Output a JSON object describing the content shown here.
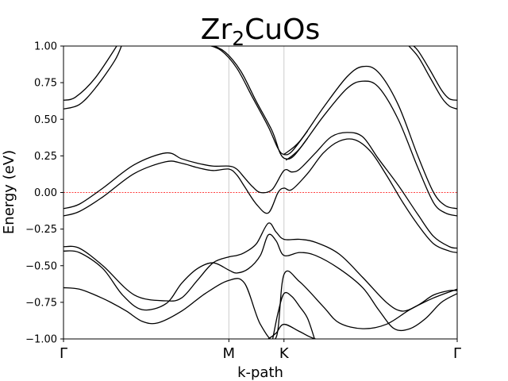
{
  "chart_data": {
    "type": "line",
    "title": {
      "base": "Zr",
      "sub": "2",
      "rest": "CuOs"
    },
    "xlabel": "k-path",
    "ylabel": "Energy (eV)",
    "xlim": [
      0,
      1
    ],
    "ylim": [
      -1.0,
      1.0
    ],
    "yticks": [
      -1.0,
      -0.75,
      -0.5,
      -0.25,
      0.0,
      0.25,
      0.5,
      0.75,
      1.0
    ],
    "ytick_labels": [
      "−1.00",
      "−0.75",
      "−0.50",
      "−0.25",
      "0.00",
      "0.25",
      "0.50",
      "0.75",
      "1.00"
    ],
    "xticks": [
      {
        "label": "Γ",
        "x": 0.0
      },
      {
        "label": "M",
        "x": 0.42
      },
      {
        "label": "K",
        "x": 0.56
      },
      {
        "label": "Γ",
        "x": 1.0
      }
    ],
    "vlines": [
      0.42,
      0.56
    ],
    "fermi_level": 0.0,
    "colors": {
      "bands": "#000000",
      "fermi": "#ff0000",
      "vline": "#cccccc"
    },
    "series": [
      {
        "x": [
          0,
          0.03,
          0.08,
          0.14
        ],
        "y": [
          0.63,
          0.65,
          0.78,
          1.02
        ]
      },
      {
        "x": [
          0,
          0.04,
          0.08,
          0.13,
          0.15
        ],
        "y": [
          0.57,
          0.6,
          0.71,
          0.9,
          1.02
        ]
      },
      {
        "x": [
          0.33,
          0.36,
          0.4,
          0.44,
          0.48,
          0.52,
          0.545,
          0.56,
          0.58,
          0.62
        ],
        "y": [
          1.02,
          1.01,
          0.97,
          0.85,
          0.65,
          0.45,
          0.3,
          0.26,
          0.28,
          0.42
        ]
      },
      {
        "x": [
          0.34,
          0.37,
          0.41,
          0.45,
          0.49,
          0.53,
          0.55,
          0.565,
          0.585,
          0.62
        ],
        "y": [
          1.02,
          1.01,
          0.96,
          0.83,
          0.62,
          0.42,
          0.27,
          0.23,
          0.25,
          0.37
        ]
      },
      {
        "x": [
          0.56,
          0.6,
          0.66,
          0.72,
          0.76,
          0.8,
          0.85,
          0.9,
          0.94,
          0.97,
          1.0
        ],
        "y": [
          0.26,
          0.35,
          0.58,
          0.79,
          0.86,
          0.82,
          0.6,
          0.25,
          0.0,
          -0.09,
          -0.11
        ]
      },
      {
        "x": [
          0.565,
          0.6,
          0.66,
          0.72,
          0.76,
          0.8,
          0.85,
          0.9,
          0.94,
          0.97,
          1.0
        ],
        "y": [
          0.22,
          0.3,
          0.52,
          0.71,
          0.76,
          0.72,
          0.5,
          0.17,
          -0.07,
          -0.14,
          -0.16
        ]
      },
      {
        "x": [
          0.88,
          0.9,
          0.93,
          0.96,
          0.98,
          1.0
        ],
        "y": [
          1.02,
          0.97,
          0.84,
          0.7,
          0.64,
          0.63
        ]
      },
      {
        "x": [
          0.87,
          0.9,
          0.93,
          0.96,
          0.98,
          1.0
        ],
        "y": [
          1.02,
          0.93,
          0.79,
          0.65,
          0.59,
          0.57
        ]
      },
      {
        "x": [
          0,
          0.04,
          0.1,
          0.18,
          0.26,
          0.3,
          0.34,
          0.38,
          0.42,
          0.44,
          0.46,
          0.48,
          0.5,
          0.53,
          0.56,
          0.58,
          0.6,
          0.64,
          0.68,
          0.72,
          0.76,
          0.8,
          0.85,
          0.9,
          0.94,
          0.98,
          1.0
        ],
        "y": [
          -0.11,
          -0.08,
          0.03,
          0.19,
          0.27,
          0.23,
          0.2,
          0.18,
          0.18,
          0.16,
          0.1,
          0.04,
          0.0,
          0.02,
          0.15,
          0.14,
          0.16,
          0.27,
          0.38,
          0.41,
          0.38,
          0.23,
          0.05,
          -0.15,
          -0.3,
          -0.37,
          -0.38
        ]
      },
      {
        "x": [
          0,
          0.04,
          0.1,
          0.18,
          0.26,
          0.3,
          0.34,
          0.38,
          0.42,
          0.44,
          0.46,
          0.49,
          0.52,
          0.545,
          0.56,
          0.58,
          0.62,
          0.66,
          0.7,
          0.74,
          0.78,
          0.82,
          0.86,
          0.9,
          0.94,
          0.98,
          1.0
        ],
        "y": [
          -0.16,
          -0.13,
          -0.03,
          0.13,
          0.21,
          0.2,
          0.17,
          0.15,
          0.16,
          0.12,
          0.04,
          -0.08,
          -0.14,
          0.0,
          0.03,
          0.02,
          0.13,
          0.27,
          0.35,
          0.36,
          0.28,
          0.12,
          -0.06,
          -0.22,
          -0.35,
          -0.4,
          -0.41
        ]
      },
      {
        "x": [
          0,
          0.04,
          0.1,
          0.18,
          0.26,
          0.3,
          0.34,
          0.38,
          0.42,
          0.44,
          0.46,
          0.49,
          0.52,
          0.54,
          0.56,
          0.6,
          0.64,
          0.7,
          0.76,
          0.82,
          0.86,
          0.9,
          0.94,
          0.98,
          1.0
        ],
        "y": [
          -0.37,
          -0.38,
          -0.5,
          -0.7,
          -0.74,
          -0.72,
          -0.6,
          -0.48,
          -0.44,
          -0.43,
          -0.41,
          -0.35,
          -0.21,
          -0.27,
          -0.32,
          -0.32,
          -0.34,
          -0.42,
          -0.58,
          -0.75,
          -0.81,
          -0.77,
          -0.7,
          -0.67,
          -0.67
        ]
      },
      {
        "x": [
          0,
          0.04,
          0.1,
          0.15,
          0.2,
          0.26,
          0.3,
          0.34,
          0.38,
          0.42,
          0.44,
          0.47,
          0.5,
          0.52,
          0.54,
          0.56,
          0.6,
          0.64,
          0.7,
          0.76,
          0.8,
          0.84,
          0.88,
          0.92,
          0.96,
          1.0
        ],
        "y": [
          -0.4,
          -0.41,
          -0.52,
          -0.7,
          -0.8,
          -0.76,
          -0.62,
          -0.52,
          -0.48,
          -0.53,
          -0.55,
          -0.52,
          -0.43,
          -0.29,
          -0.33,
          -0.43,
          -0.41,
          -0.43,
          -0.52,
          -0.65,
          -0.8,
          -0.93,
          -0.93,
          -0.86,
          -0.75,
          -0.69
        ]
      },
      {
        "x": [
          0,
          0.04,
          0.08,
          0.12,
          0.16,
          0.2,
          0.24,
          0.3,
          0.36,
          0.42,
          0.46,
          0.5,
          0.54,
          0.56,
          0.6,
          0.66,
          0.7,
          0.76,
          0.82,
          0.88,
          0.94,
          1.0
        ],
        "y": [
          -0.65,
          -0.66,
          -0.7,
          -0.75,
          -0.81,
          -0.88,
          -0.89,
          -0.81,
          -0.69,
          -0.6,
          -0.62,
          -0.9,
          -0.99,
          -0.56,
          -0.61,
          -0.78,
          -0.89,
          -0.93,
          -0.9,
          -0.8,
          -0.72,
          -0.66
        ]
      },
      {
        "x": [
          0.53,
          0.545,
          0.56,
          0.58,
          0.6,
          0.62,
          0.64
        ],
        "y": [
          -1.02,
          -0.82,
          -0.69,
          -0.71,
          -0.78,
          -0.86,
          -1.02
        ]
      },
      {
        "x": [
          0.5,
          0.52,
          0.54,
          0.56,
          0.6,
          0.64,
          0.7
        ],
        "y": [
          -1.02,
          -1.0,
          -0.96,
          -0.9,
          -0.95,
          -1.0,
          -1.02
        ]
      }
    ]
  }
}
